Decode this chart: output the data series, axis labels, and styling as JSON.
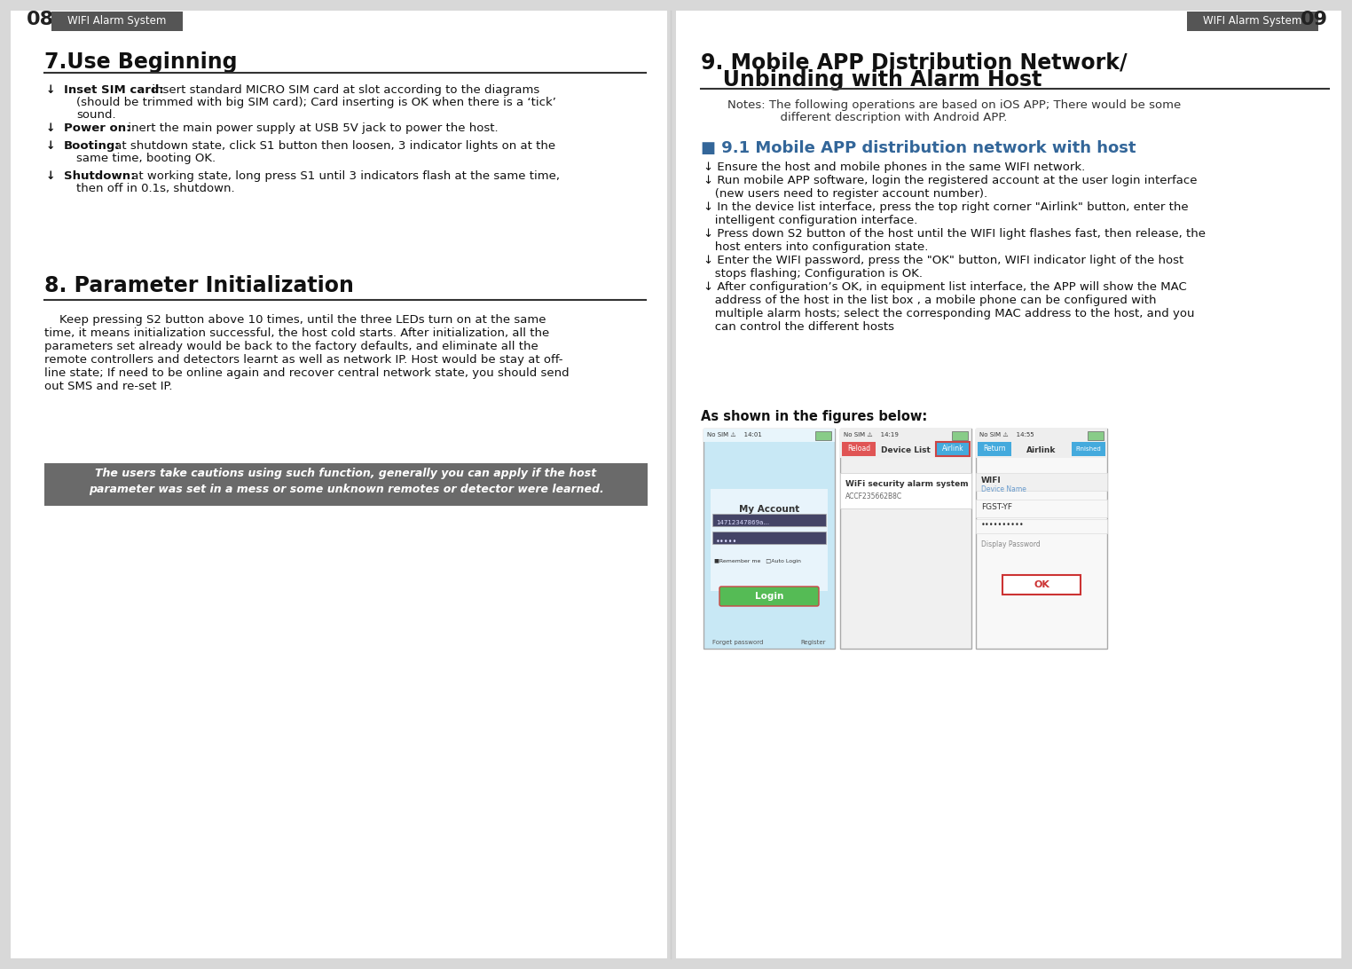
{
  "bg_color": "#d8d8d8",
  "page_bg": "#ffffff",
  "left_page": {
    "page_num": "08",
    "header_label": "WIFI Alarm System",
    "header_bg": "#555555",
    "header_text_color": "#ffffff",
    "section7_title": "7.Use Beginning",
    "bullet_inset_bold": "Inset SIM card:",
    "bullet_inset_normal": " insert standard MICRO SIM card at slot according to the diagrams\n(should be trimmed with big SIM card); Card inserting is OK when there is a ‘tick’\nsound.",
    "bullet_power_bold": "Power on:",
    "bullet_power_normal": " inert the main power supply at USB 5V jack to power the host.",
    "bullet_boot_bold": "Booting:",
    "bullet_boot_normal": " at shutdown state, click S1 button then loosen, 3 indicator lights on at the\nsame time, booting OK.",
    "bullet_shut_bold": "Shutdown:",
    "bullet_shut_normal": " at working state, long press S1 until 3 indicators flash at the same time,\nthen off in 0.1s, shutdown.",
    "section8_title": "8. Parameter Initialization",
    "section8_body": "    Keep pressing S2 button above 10 times, until the three LEDs turn on at the same\ntime, it means initialization successful, the host cold starts. After initialization, all the\nparameters set already would be back to the factory defaults, and eliminate all the\nremote controllers and detectors learnt as well as network IP. Host would be stay at off-\nline state; If need to be online again and recover central network state, you should send\nout SMS and re-set IP.",
    "caution_line1": "The users take cautions using such function, generally you can apply if the host",
    "caution_line2": "parameter was set in a mess or some unknown remotes or detector were learned.",
    "caution_bg": "#6a6a6a",
    "caution_text_color": "#ffffff"
  },
  "right_page": {
    "page_num": "09",
    "header_label": "WIFI Alarm System",
    "header_bg": "#555555",
    "header_text_color": "#ffffff",
    "section9_line1": "9. Mobile APP Distribution Network/",
    "section9_line2": "   Unbinding with Alarm Host",
    "notes_line1": "Notes: The following operations are based on iOS APP; There would be some",
    "notes_line2": "              different description with Android APP.",
    "sub91_title": "■ 9.1 Mobile APP distribution network with host",
    "b1": "↓ Ensure the host and mobile phones in the same WIFI network.",
    "b2l1": "↓ Run mobile APP software, login the registered account at the user login interface",
    "b2l2": "   (new users need to register account number).",
    "b3l1": "↓ In the device list interface, press the top right corner \"Airlink\" button, enter the",
    "b3l2": "   intelligent configuration interface.",
    "b4l1": "↓ Press down S2 button of the host until the WIFI light flashes fast, then release, the",
    "b4l2": "   host enters into configuration state.",
    "b5l1": "↓ Enter the WIFI password, press the \"OK\" button, WIFI indicator light of the host",
    "b5l2": "   stops flashing; Configuration is OK.",
    "b6l1": "↓ After configuration’s OK, in equipment list interface, the APP will show the MAC",
    "b6l2": "   address of the host in the list box , a mobile phone can be configured with",
    "b6l3": "   multiple alarm hosts; select the corresponding MAC address to the host, and you",
    "b6l4": "   can control the different hosts",
    "figures_label": "As shown in the figures below:"
  },
  "screen1": {
    "status": "No SIM ⚠    14:01",
    "title": "My Account",
    "user": "14712347869a...",
    "pass_dots": "•••••",
    "remember": "■Remember me   □Auto Login",
    "login_btn": "Login",
    "forget": "Forget password",
    "register": "Register",
    "bg_top": "#c5e8f5",
    "bg_bot": "#ddf0fa"
  },
  "screen2": {
    "status": "No SIM ⚠    14:19",
    "reload_label": "Reload",
    "nav_label": "Device List",
    "airlink_label": "Airlink",
    "wifi_title": "WiFi security alarm system",
    "wifi_mac": "ACCF235662B8C",
    "reload_color": "#e05555",
    "airlink_color": "#44aadd",
    "bg": "#f0f0f0"
  },
  "screen3": {
    "status": "No SIM ⚠    14:55",
    "return_label": "Return",
    "nav_label": "Airlink",
    "finish_label": "Finished",
    "wifi_label": "WIFI",
    "wifi_sub": "Device Name",
    "fgst_label": "FGST-YF",
    "pass_dots": "••••••••••",
    "disp_pass": "Display Password",
    "ok_label": "OK",
    "return_color": "#44aadd",
    "finish_color": "#44aadd",
    "ok_border": "#cc3333",
    "bg": "#f8f8f8"
  }
}
